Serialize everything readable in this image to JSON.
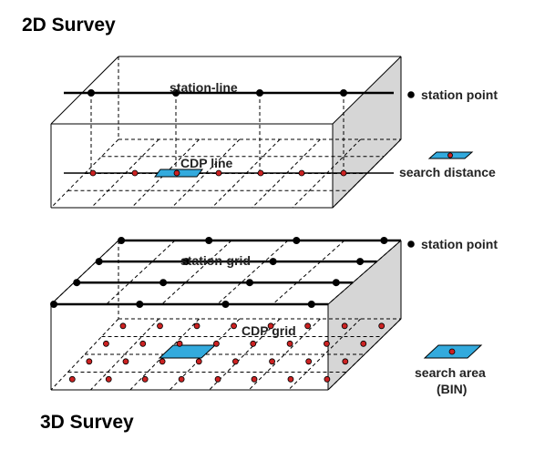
{
  "titles": {
    "top": "2D Survey",
    "bottom": "3D Survey"
  },
  "survey_2d": {
    "line_label": "station-line",
    "cdp_label": "CDP line",
    "legend_station": "station point",
    "legend_search": "search distance"
  },
  "survey_3d": {
    "grid_label": "station-grid",
    "cdp_label": "CDP grid",
    "legend_station": "station point",
    "legend_search_line1": "search area",
    "legend_search_line2": "(BIN)"
  },
  "colors": {
    "outline": "#000000",
    "side_face": "#d6d6d6",
    "cdp_point": "#cc2222",
    "search_fill": "#33aadd",
    "station_point": "#000000"
  }
}
